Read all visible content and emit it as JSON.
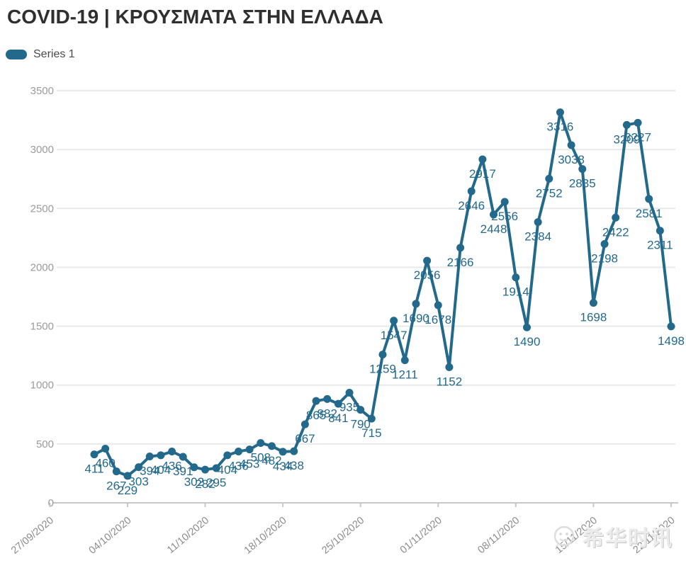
{
  "header": {
    "title": "COVID-19 | ΚΡΟΥΣΜΑΤΑ ΣΤΗΝ ΕΛΛΑΔΑ"
  },
  "legend": {
    "series_label": "Series 1"
  },
  "watermark": {
    "text": "希华时讯",
    "icon": "mascot-face-icon"
  },
  "colors": {
    "accent": "#23698c",
    "grid": "#e9e9e9",
    "axis": "#c8c8c8",
    "y_tick_label": "#9b9b9b",
    "x_tick_label": "#8c8c8c",
    "title": "#2f2f2f"
  },
  "chart_data": {
    "type": "line",
    "title": "COVID-19 | ΚΡΟΥΣΜΑΤΑ ΣΤΗΝ ΕΛΛΑΔΑ",
    "series": [
      {
        "name": "Series 1",
        "values": [
          411,
          460,
          267,
          229,
          303,
          394,
          404,
          436,
          391,
          302,
          282,
          295,
          404,
          436,
          453,
          508,
          482,
          434,
          438,
          667,
          865,
          882,
          841,
          935,
          790,
          715,
          1259,
          1547,
          1211,
          1690,
          2056,
          1678,
          1152,
          2166,
          2646,
          2917,
          2448,
          2556,
          1914,
          1490,
          2384,
          2752,
          3316,
          3038,
          2835,
          1698,
          2198,
          2422,
          3209,
          3227,
          2581,
          2311,
          1498
        ]
      }
    ],
    "point_labels_visible": true,
    "x_tick_labels": [
      "27/09/2020",
      "04/10/2020",
      "11/10/2020",
      "18/10/2020",
      "25/10/2020",
      "01/11/2020",
      "08/11/2020",
      "15/11/2020",
      "22/11/2020"
    ],
    "x_tick_interval_days": 7,
    "y_ticks": [
      0,
      500,
      1000,
      1500,
      2000,
      2500,
      3000,
      3500
    ],
    "ylim": [
      0,
      3500
    ],
    "xlabel": "",
    "ylabel": "",
    "grid": "horizontal",
    "legend_position": "top-left"
  }
}
